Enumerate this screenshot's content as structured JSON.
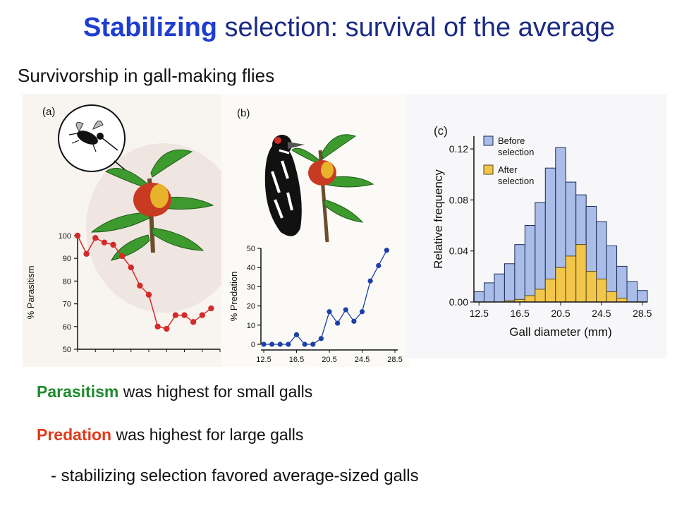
{
  "slide": {
    "title_emph": "Stabilizing",
    "title_rest": " selection: survival of the average",
    "subtitle": "Survivorship in gall-making flies",
    "captions": [
      {
        "emph": "Parasitism",
        "rest": " was highest for small galls"
      },
      {
        "emph": "Predation",
        "rest": " was highest for large galls"
      },
      {
        "emph": "",
        "rest": "- stabilizing selection favored average-sized galls"
      }
    ]
  },
  "colors": {
    "title": "#1a2a86",
    "title_emph": "#1f3ed1",
    "parasitism": "#1f8a2e",
    "predation": "#e03a1a",
    "series_a": "#d42a2a",
    "series_b": "#1c3fa8",
    "before_fill": "#a9bde8",
    "after_fill": "#f2c64b"
  },
  "chart_data": [
    {
      "type": "line",
      "panel_label": "(a)",
      "xlabel": "",
      "ylabel": "% Parasitism",
      "ylim": [
        50,
        100
      ],
      "yticks": [
        50,
        60,
        70,
        80,
        90,
        100
      ],
      "xlim": [
        12.5,
        28.5
      ],
      "series": [
        {
          "values": [
            {
              "x": 12.5,
              "y": 100
            },
            {
              "x": 13.5,
              "y": 92
            },
            {
              "x": 14.5,
              "y": 99
            },
            {
              "x": 15.5,
              "y": 97
            },
            {
              "x": 16.5,
              "y": 96
            },
            {
              "x": 17.5,
              "y": 91
            },
            {
              "x": 18.5,
              "y": 86
            },
            {
              "x": 19.5,
              "y": 78
            },
            {
              "x": 20.5,
              "y": 74
            },
            {
              "x": 21.5,
              "y": 60
            },
            {
              "x": 22.5,
              "y": 59
            },
            {
              "x": 23.5,
              "y": 65
            },
            {
              "x": 24.5,
              "y": 65
            },
            {
              "x": 25.5,
              "y": 62
            },
            {
              "x": 26.5,
              "y": 65
            },
            {
              "x": 27.5,
              "y": 68
            }
          ]
        }
      ]
    },
    {
      "type": "line",
      "panel_label": "(b)",
      "xlabel": "",
      "ylabel": "% Predation",
      "ylim": [
        0,
        50
      ],
      "yticks": [
        0,
        10,
        20,
        30,
        40,
        50
      ],
      "xlim": [
        12.5,
        28.5
      ],
      "xticks": [
        "12.5",
        "16.5",
        "20.5",
        "24.5",
        "28.5"
      ],
      "series": [
        {
          "values": [
            {
              "x": 12.5,
              "y": 0
            },
            {
              "x": 13.5,
              "y": 0
            },
            {
              "x": 14.5,
              "y": 0
            },
            {
              "x": 15.5,
              "y": 0
            },
            {
              "x": 16.5,
              "y": 5
            },
            {
              "x": 17.5,
              "y": 0
            },
            {
              "x": 18.5,
              "y": 0
            },
            {
              "x": 19.5,
              "y": 3
            },
            {
              "x": 20.5,
              "y": 17
            },
            {
              "x": 21.5,
              "y": 11
            },
            {
              "x": 22.5,
              "y": 18
            },
            {
              "x": 23.5,
              "y": 12
            },
            {
              "x": 24.5,
              "y": 17
            },
            {
              "x": 25.5,
              "y": 33
            },
            {
              "x": 26.5,
              "y": 41
            },
            {
              "x": 27.5,
              "y": 49
            }
          ]
        }
      ]
    },
    {
      "type": "bar",
      "panel_label": "(c)",
      "xlabel": "Gall diameter (mm)",
      "ylabel": "Relative frequency",
      "ylim": [
        0,
        0.13
      ],
      "yticks": [
        "0.00",
        "0.04",
        "0.08",
        "0.12"
      ],
      "xlim": [
        12.0,
        29.0
      ],
      "xticks": [
        "12.5",
        "16.5",
        "20.5",
        "24.5",
        "28.5"
      ],
      "legend": "top-left",
      "bin_centers": [
        12.5,
        13.5,
        14.5,
        15.5,
        16.5,
        17.5,
        18.5,
        19.5,
        20.5,
        21.5,
        22.5,
        23.5,
        24.5,
        25.5,
        26.5,
        27.5,
        28.5
      ],
      "series": [
        {
          "name": "Before\nselection",
          "values": [
            0.008,
            0.015,
            0.022,
            0.03,
            0.045,
            0.06,
            0.078,
            0.105,
            0.121,
            0.094,
            0.084,
            0.075,
            0.063,
            0.044,
            0.028,
            0.016,
            0.009
          ]
        },
        {
          "name": "After\nselection",
          "values": [
            0.0,
            0.0,
            0.0,
            0.001,
            0.002,
            0.005,
            0.01,
            0.018,
            0.027,
            0.036,
            0.045,
            0.024,
            0.018,
            0.008,
            0.003,
            0.0,
            0.0
          ]
        }
      ]
    }
  ]
}
